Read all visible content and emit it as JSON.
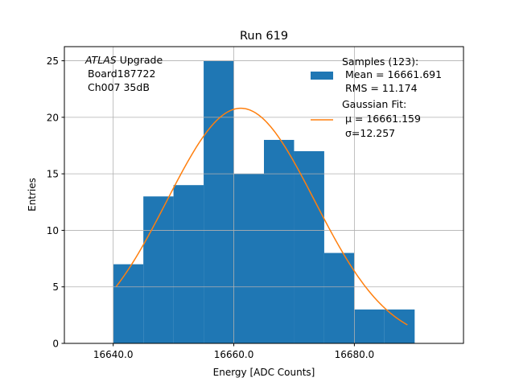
{
  "chart_data": {
    "type": "bar",
    "title": "Run 619",
    "xlabel": "Energy [ADC Counts]",
    "ylabel": "Entries",
    "xlim": [
      16631.9,
      16698.1
    ],
    "ylim": [
      0,
      26.25
    ],
    "grid": true,
    "xticks": [
      16640.0,
      16660.0,
      16680.0
    ],
    "xtick_labels": [
      "16640.0",
      "16660.0",
      "16680.0"
    ],
    "yticks": [
      0,
      5,
      10,
      15,
      20,
      25
    ],
    "ytick_labels": [
      "0",
      "5",
      "10",
      "15",
      "20",
      "25"
    ],
    "histogram": {
      "bin_edges": [
        16640,
        16645,
        16650,
        16655,
        16660,
        16665,
        16670,
        16675,
        16680,
        16685,
        16690
      ],
      "counts": [
        7,
        13,
        14,
        25,
        15,
        18,
        17,
        8,
        3,
        3
      ],
      "color": "#1f77b4"
    },
    "fit": {
      "type": "gaussian",
      "amplitude": 20.8,
      "mu": 16661.159,
      "sigma": 12.257,
      "x_range": [
        16640.5,
        16688.8
      ],
      "color": "#ff7f0e"
    },
    "annotation": [
      "ATLAS",
      " Upgrade",
      "Board187722",
      "Ch007 35dB"
    ],
    "legend": {
      "placement": "top-right",
      "entries": [
        {
          "lines": [
            "Samples (123):",
            " Mean = 16661.691",
            " RMS = 11.174"
          ]
        },
        {
          "lines": [
            "Gaussian Fit:",
            " μ = 16661.159",
            " σ=12.257"
          ]
        }
      ]
    }
  }
}
